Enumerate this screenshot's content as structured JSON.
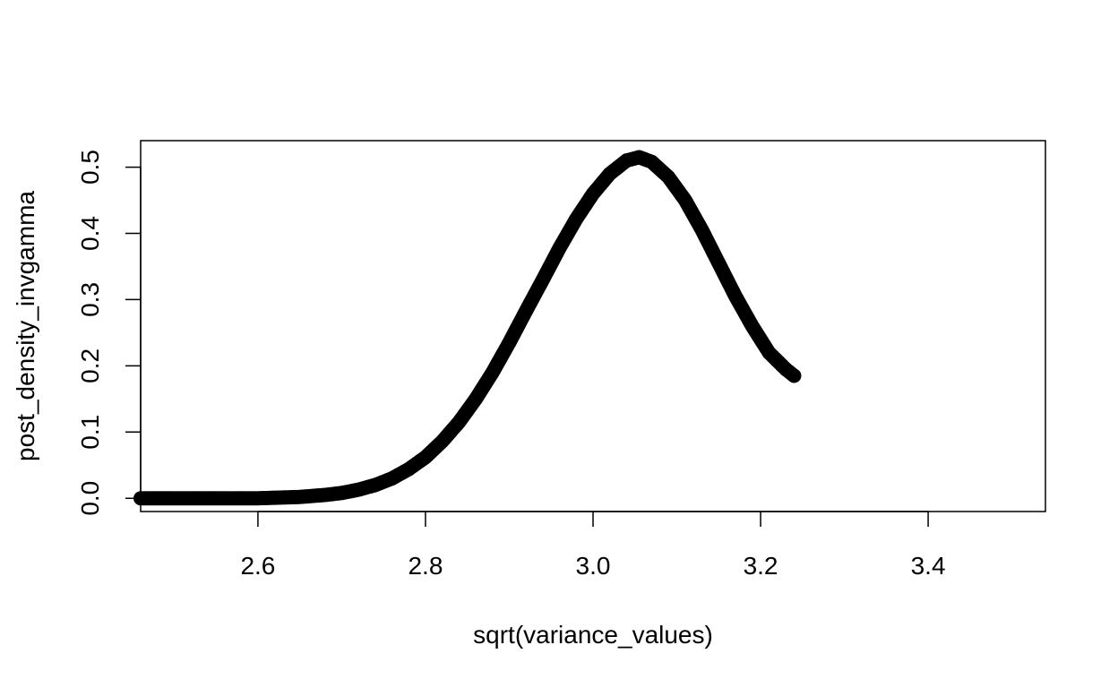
{
  "chart_data": {
    "type": "scatter",
    "title": "",
    "xlabel": "sqrt(variance_values)",
    "ylabel": "post_density_invgamma",
    "xlim": [
      2.46,
      3.54
    ],
    "ylim": [
      -0.02,
      0.54
    ],
    "x_ticks": [
      "2.6",
      "2.8",
      "3.0",
      "3.2",
      "3.4"
    ],
    "y_ticks": [
      "0.0",
      "0.1",
      "0.2",
      "0.3",
      "0.4",
      "0.5"
    ],
    "grid": false,
    "legend": "none",
    "color": "#000000",
    "series": [
      {
        "x": [
          2.46,
          2.5,
          2.55,
          2.6,
          2.65,
          2.68,
          2.7,
          2.72,
          2.74,
          2.76,
          2.78,
          2.8,
          2.82,
          2.84,
          2.86,
          2.88,
          2.9,
          2.92,
          2.94,
          2.96,
          2.98,
          3.0,
          3.02,
          3.04,
          3.055,
          3.07,
          3.09,
          3.11,
          3.13,
          3.15,
          3.17,
          3.19,
          3.21,
          3.23,
          3.24
        ],
        "y": [
          0.0,
          0.0,
          0.0,
          0.0,
          0.002,
          0.005,
          0.008,
          0.013,
          0.02,
          0.03,
          0.044,
          0.062,
          0.086,
          0.115,
          0.15,
          0.19,
          0.235,
          0.283,
          0.33,
          0.378,
          0.422,
          0.46,
          0.49,
          0.51,
          0.515,
          0.508,
          0.485,
          0.45,
          0.405,
          0.355,
          0.305,
          0.26,
          0.22,
          0.195,
          0.185
        ]
      }
    ]
  }
}
